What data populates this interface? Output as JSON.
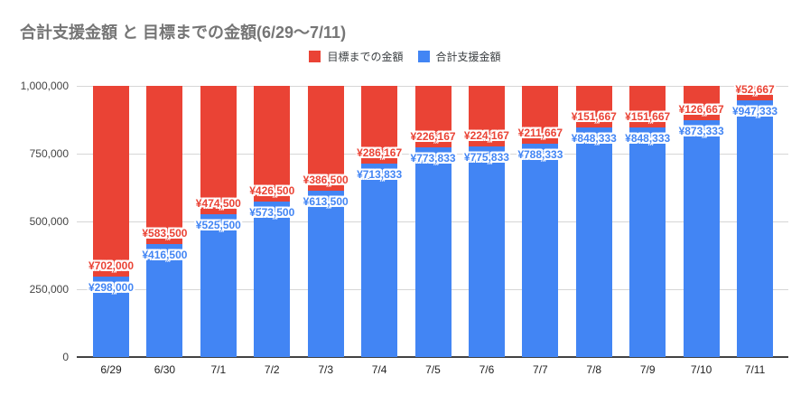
{
  "chart_data": {
    "type": "bar",
    "stacked": true,
    "title": "合計支援金額 と 目標までの金額(6/29～7/11)",
    "xlabel": "",
    "ylabel": "",
    "categories": [
      "6/29",
      "6/30",
      "7/1",
      "7/2",
      "7/3",
      "7/4",
      "7/5",
      "7/6",
      "7/7",
      "7/8",
      "7/9",
      "7/10",
      "7/11"
    ],
    "series": [
      {
        "name": "目標までの金額",
        "color": "#ea4335",
        "stack_position": "top",
        "values": [
          702000,
          583500,
          474500,
          426500,
          386500,
          286167,
          226167,
          224167,
          211667,
          151667,
          151667,
          126667,
          52667
        ]
      },
      {
        "name": "合計支援金額",
        "color": "#4285f4",
        "stack_position": "bottom",
        "values": [
          298000,
          416500,
          525500,
          573500,
          613500,
          713833,
          773833,
          775833,
          788333,
          848333,
          848333,
          873333,
          947333
        ]
      }
    ],
    "data_label_prefix": "¥",
    "ylim": [
      0,
      1000000
    ],
    "yticks": [
      0,
      250000,
      500000,
      750000,
      1000000
    ],
    "ytick_labels": [
      "0",
      "250,000",
      "500,000",
      "750,000",
      "1,000,000"
    ],
    "grid": true,
    "legend_position": "top-center"
  },
  "style": {
    "title_color": "#757575",
    "grid_color": "#d6d6d6",
    "axis_color": "#424242",
    "tick_color": "#444444",
    "legend_text_color": "#3c4043",
    "background": "#ffffff"
  }
}
